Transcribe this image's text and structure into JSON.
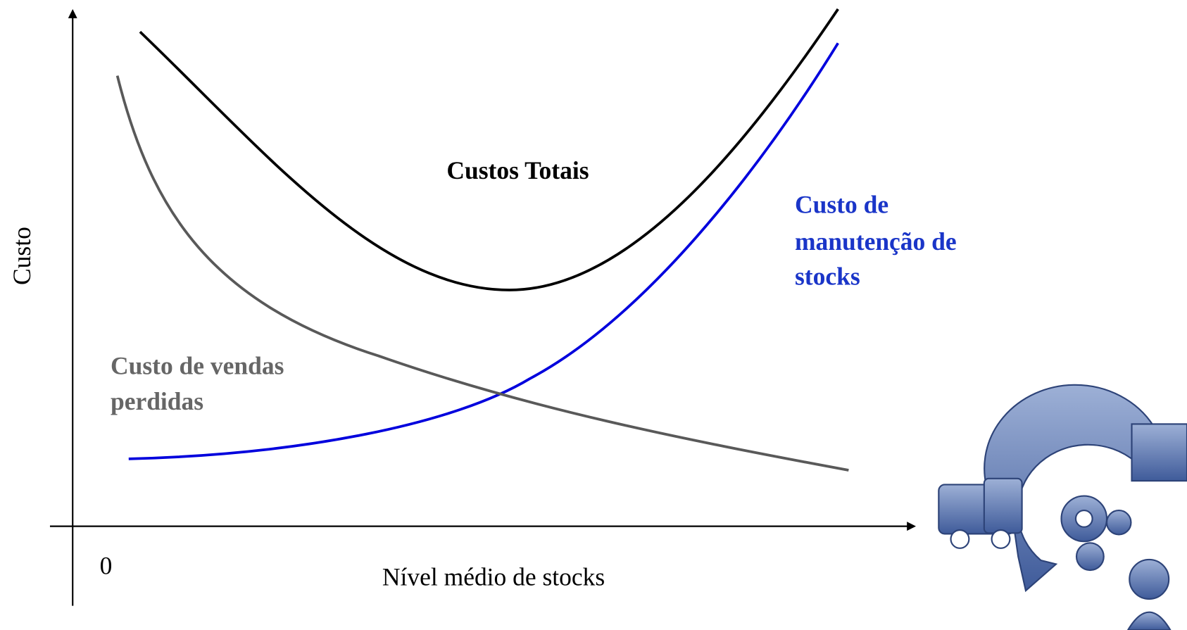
{
  "axes": {
    "y_label": "Custo",
    "x_label": "Nível médio de stocks",
    "origin": "0"
  },
  "curves": [
    {
      "label_lines": [
        "Custos Totais"
      ]
    },
    {
      "label_lines": [
        "Custo de",
        "manutenção de",
        "stocks"
      ]
    },
    {
      "label_lines": [
        "Custo de vendas",
        "perdidas"
      ]
    }
  ]
}
